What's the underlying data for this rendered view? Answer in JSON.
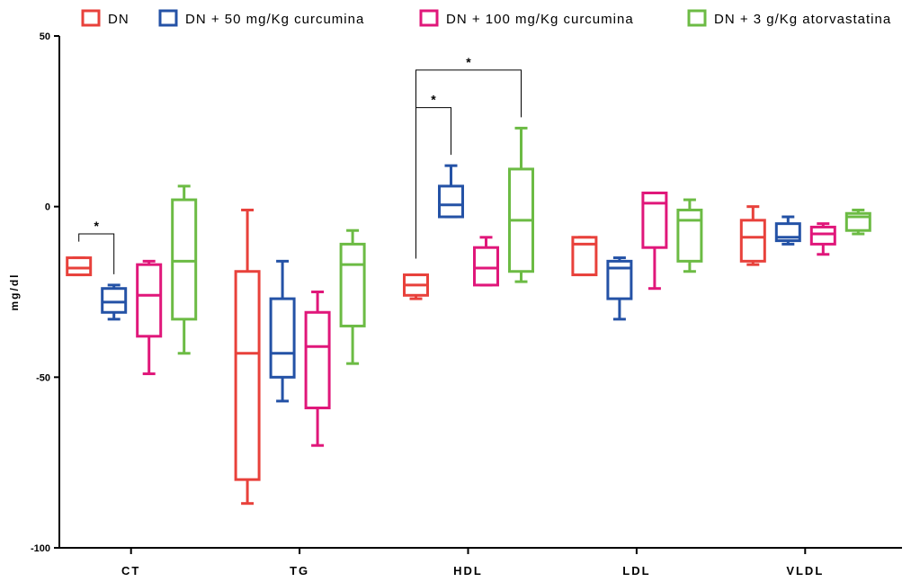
{
  "chart_data": {
    "type": "box",
    "ylabel": "mg/dl",
    "xlabel": "",
    "ylim": [
      -100,
      50
    ],
    "yticks": [
      "50",
      "0",
      "-50",
      "-100"
    ],
    "categories": [
      "CT",
      "TG",
      "HDL",
      "LDL",
      "VLDL"
    ],
    "legend_position": "top",
    "series": [
      {
        "name": "DN",
        "color": "#e8413b",
        "boxes": [
          {
            "min": -20,
            "q1": -20,
            "median": -18,
            "q3": -15,
            "max": -15
          },
          {
            "min": -87,
            "q1": -80,
            "median": -43,
            "q3": -19,
            "max": -1
          },
          {
            "min": -27,
            "q1": -26,
            "median": -23,
            "q3": -20,
            "max": -20
          },
          {
            "min": -20,
            "q1": -20,
            "median": -11,
            "q3": -9,
            "max": -9
          },
          {
            "min": -17,
            "q1": -16,
            "median": -9,
            "q3": -4,
            "max": 0
          }
        ]
      },
      {
        "name": "DN + 50 mg/Kg curcumina",
        "color": "#2452a6",
        "boxes": [
          {
            "min": -33,
            "q1": -31,
            "median": -28,
            "q3": -24,
            "max": -23
          },
          {
            "min": -57,
            "q1": -50,
            "median": -43,
            "q3": -27,
            "max": -16
          },
          {
            "min": -3,
            "q1": -3,
            "median": 0.5,
            "q3": 6,
            "max": 12
          },
          {
            "min": -33,
            "q1": -27,
            "median": -18,
            "q3": -16,
            "max": -15
          },
          {
            "min": -11,
            "q1": -10,
            "median": -9,
            "q3": -5,
            "max": -3
          }
        ]
      },
      {
        "name": "DN + 100 mg/Kg curcumina",
        "color": "#e0177a",
        "boxes": [
          {
            "min": -49,
            "q1": -38,
            "median": -26,
            "q3": -17,
            "max": -16
          },
          {
            "min": -70,
            "q1": -59,
            "median": -41,
            "q3": -31,
            "max": -25
          },
          {
            "min": -23,
            "q1": -23,
            "median": -18,
            "q3": -12,
            "max": -9
          },
          {
            "min": -24,
            "q1": -12,
            "median": 1,
            "q3": 4,
            "max": 4
          },
          {
            "min": -14,
            "q1": -11,
            "median": -8,
            "q3": -6,
            "max": -5
          }
        ]
      },
      {
        "name": "DN + 3 g/Kg atorvastatina",
        "color": "#6cbb44",
        "boxes": [
          {
            "min": -43,
            "q1": -33,
            "median": -16,
            "q3": 2,
            "max": 6
          },
          {
            "min": -46,
            "q1": -35,
            "median": -17,
            "q3": -11,
            "max": -7
          },
          {
            "min": -22,
            "q1": -19,
            "median": -4,
            "q3": 11,
            "max": 23
          },
          {
            "min": -19,
            "q1": -16,
            "median": -4,
            "q3": -1,
            "max": 2
          },
          {
            "min": -8,
            "q1": -7,
            "median": -3,
            "q3": -2,
            "max": -1
          }
        ]
      }
    ],
    "annotations": [
      {
        "text": "*",
        "category": 0,
        "from_series": 0,
        "to_series": 1,
        "level": -8
      },
      {
        "text": "*",
        "category": 2,
        "from_series": 0,
        "to_series": 1,
        "level": 29
      },
      {
        "text": "*",
        "category": 2,
        "from_series": 0,
        "to_series": 3,
        "level": 40
      }
    ]
  }
}
